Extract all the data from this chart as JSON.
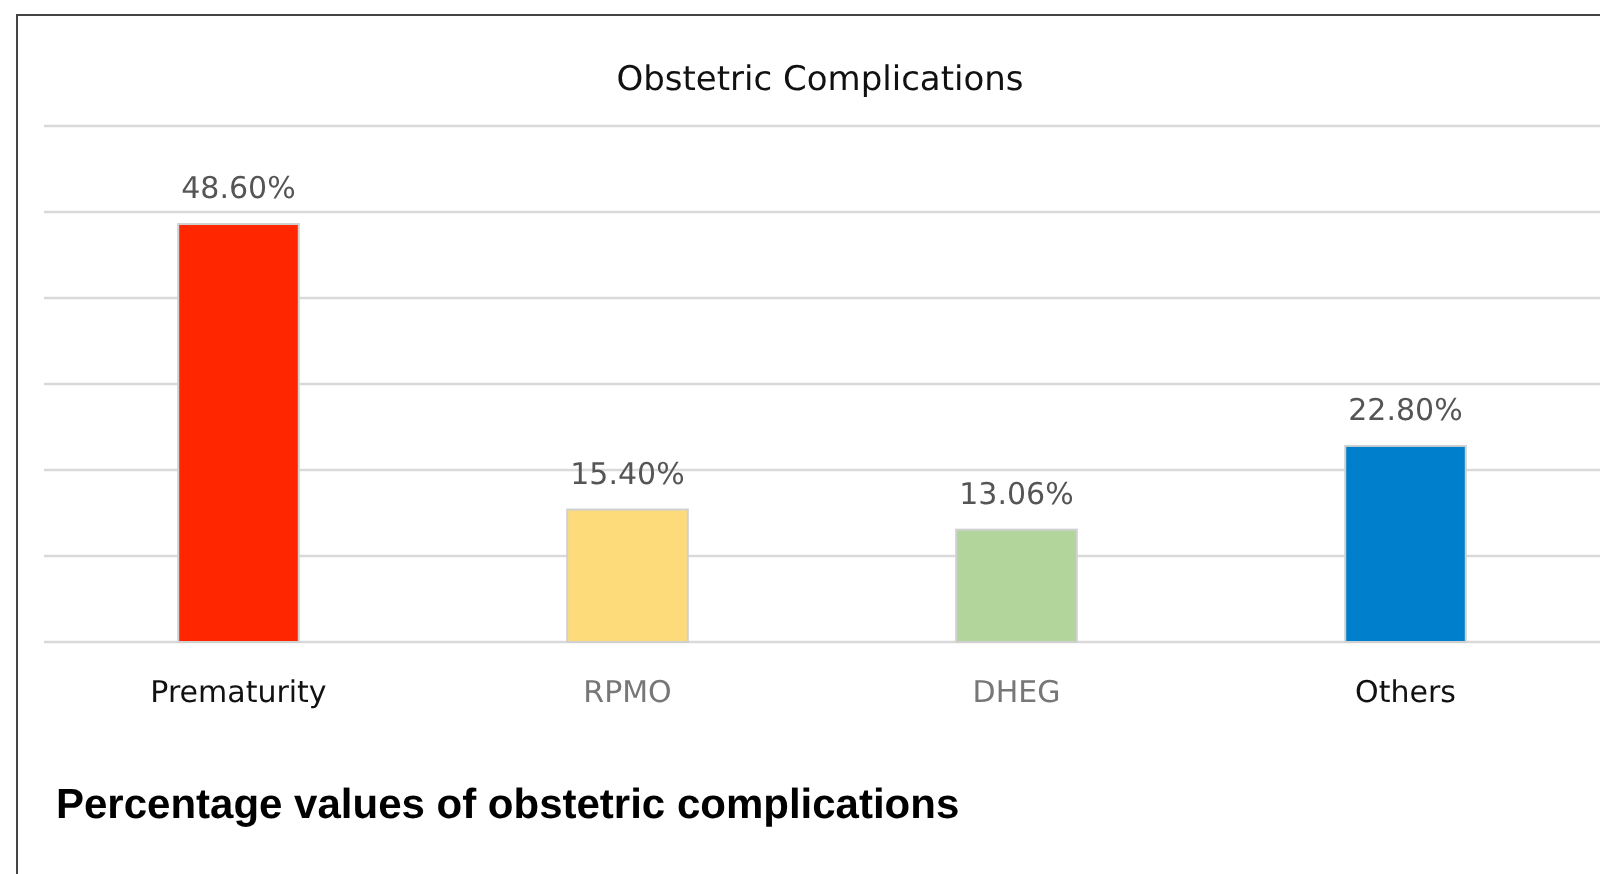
{
  "chart_data": {
    "type": "bar",
    "title": "Obstetric Complications",
    "categories": [
      "Prematurity",
      "RPMO",
      "DHEG",
      "Others"
    ],
    "values": [
      48.6,
      15.4,
      13.06,
      22.8
    ],
    "colors": [
      "#ff2600",
      "#fdda7a",
      "#b2d59c",
      "#007fcd"
    ],
    "value_labels": [
      "48.60%",
      "15.40%",
      "13.06%",
      "22.80%"
    ],
    "ylim": [
      0,
      60
    ],
    "yticks": [
      {
        "value": 0,
        "label": null
      },
      {
        "value": 10,
        "label": null
      },
      {
        "value": 20,
        "label": null
      },
      {
        "value": 30,
        "label": null
      },
      {
        "value": 40,
        "label": null
      },
      {
        "value": 50,
        "label": null
      },
      {
        "value": 60,
        "label": null
      }
    ],
    "grid": "y",
    "tick_labels": "x",
    "annotations": [
      "Percentage values of obstetric complications"
    ]
  }
}
